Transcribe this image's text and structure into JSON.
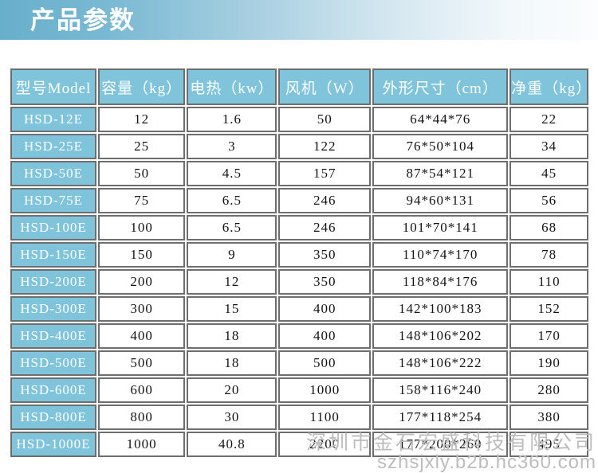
{
  "banner": {
    "title": "产品参数",
    "gradient_left": "#68afcc",
    "gradient_right": "#fbfdfe",
    "text_color": "#ffffff"
  },
  "table": {
    "header_bg": "#7fc4db",
    "model_column_bg": "#7fc4db",
    "border_color": "#6e6e6e",
    "headers": [
      "型号Model",
      "容量（kg）",
      "电热（kw）",
      "风机（W）",
      "外形尺寸（cm）",
      "净重（kg）"
    ],
    "rows": [
      [
        "HSD-12E",
        "12",
        "1.6",
        "50",
        "64*44*76",
        "22"
      ],
      [
        "HSD-25E",
        "25",
        "3",
        "122",
        "76*50*104",
        "34"
      ],
      [
        "HSD-50E",
        "50",
        "4.5",
        "157",
        "87*54*121",
        "45"
      ],
      [
        "HSD-75E",
        "75",
        "6.5",
        "246",
        "94*60*131",
        "56"
      ],
      [
        "HSD-100E",
        "100",
        "6.5",
        "246",
        "101*70*141",
        "68"
      ],
      [
        "HSD-150E",
        "150",
        "9",
        "350",
        "110*74*170",
        "78"
      ],
      [
        "HSD-200E",
        "200",
        "12",
        "350",
        "118*84*176",
        "110"
      ],
      [
        "HSD-300E",
        "300",
        "15",
        "400",
        "142*100*183",
        "152"
      ],
      [
        "HSD-400E",
        "400",
        "18",
        "400",
        "148*106*202",
        "170"
      ],
      [
        "HSD-500E",
        "500",
        "18",
        "500",
        "148*106*222",
        "190"
      ],
      [
        "HSD-600E",
        "600",
        "20",
        "1000",
        "158*116*240",
        "280"
      ],
      [
        "HSD-800E",
        "800",
        "30",
        "1100",
        "177*118*254",
        "380"
      ],
      [
        "HSD-1000E",
        "1000",
        "40.8",
        "2200",
        "177*200*260",
        "495"
      ]
    ]
  },
  "watermark": {
    "company": "深圳市金石宏盛科技有限公司",
    "url": "szhsjxly.b2b.hc360.com",
    "color": "#bdbdbd"
  }
}
